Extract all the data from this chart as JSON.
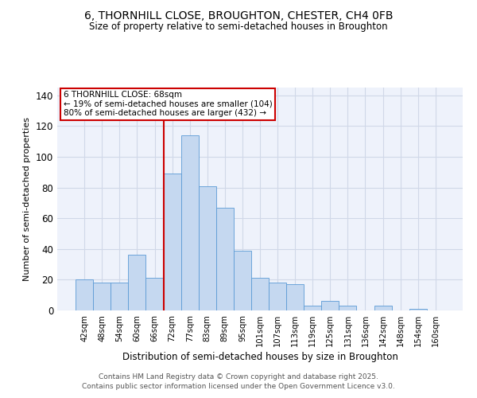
{
  "title_line1": "6, THORNHILL CLOSE, BROUGHTON, CHESTER, CH4 0FB",
  "title_line2": "Size of property relative to semi-detached houses in Broughton",
  "xlabel": "Distribution of semi-detached houses by size in Broughton",
  "ylabel": "Number of semi-detached properties",
  "categories": [
    "42sqm",
    "48sqm",
    "54sqm",
    "60sqm",
    "66sqm",
    "72sqm",
    "77sqm",
    "83sqm",
    "89sqm",
    "95sqm",
    "101sqm",
    "107sqm",
    "113sqm",
    "119sqm",
    "125sqm",
    "131sqm",
    "136sqm",
    "142sqm",
    "148sqm",
    "154sqm",
    "160sqm"
  ],
  "values": [
    20,
    18,
    18,
    36,
    21,
    89,
    114,
    81,
    67,
    39,
    21,
    18,
    17,
    3,
    6,
    3,
    0,
    3,
    0,
    1,
    0
  ],
  "bar_color": "#c5d8f0",
  "bar_edge_color": "#5b9bd5",
  "grid_color": "#d0d8e8",
  "background_color": "#eef2fb",
  "property_size_bin_index": 5,
  "annotation_title": "6 THORNHILL CLOSE: 68sqm",
  "annotation_line2": "← 19% of semi-detached houses are smaller (104)",
  "annotation_line3": "80% of semi-detached houses are larger (432) →",
  "annotation_box_color": "#ffffff",
  "annotation_border_color": "#cc0000",
  "redline_color": "#cc0000",
  "ylim": [
    0,
    145
  ],
  "yticks": [
    0,
    20,
    40,
    60,
    80,
    100,
    120,
    140
  ],
  "footer_line1": "Contains HM Land Registry data © Crown copyright and database right 2025.",
  "footer_line2": "Contains public sector information licensed under the Open Government Licence v3.0."
}
